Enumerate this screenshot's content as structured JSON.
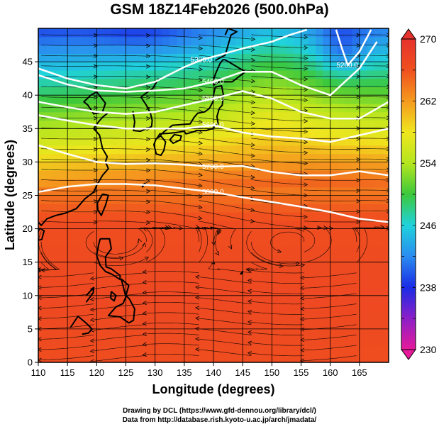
{
  "chart_data": {
    "type": "heatmap",
    "title": "GSM 18Z14Feb2026 (500.0hPa)",
    "xlabel": "Longitude (degrees)",
    "ylabel": "Latitude  (degrees)",
    "xlim": [
      110,
      170
    ],
    "ylim": [
      0,
      50
    ],
    "xticks": [
      110,
      115,
      120,
      125,
      130,
      135,
      140,
      145,
      150,
      155,
      160,
      165
    ],
    "yticks": [
      0,
      5,
      10,
      15,
      20,
      25,
      30,
      35,
      40,
      45
    ],
    "grid": true,
    "shaded_variable_range": [
      230,
      270
    ],
    "colorbar": {
      "labels": [
        270,
        262,
        254,
        246,
        238,
        230
      ],
      "range": [
        230,
        270
      ],
      "colors": [
        "#e61a9a",
        "#8c1fc8",
        "#1a2be6",
        "#2a8cf0",
        "#1fd2dc",
        "#3cc83c",
        "#b4e61e",
        "#f0e61e",
        "#f59a1e",
        "#f0501e",
        "#e6322d"
      ]
    },
    "contours": [
      {
        "label": "5300.0",
        "points": [
          [
            110,
            44
          ],
          [
            115,
            42.5
          ],
          [
            120,
            41.5
          ],
          [
            125,
            41
          ],
          [
            130,
            42
          ],
          [
            135,
            44.2
          ],
          [
            138,
            45.3
          ],
          [
            141,
            46
          ],
          [
            145,
            47
          ],
          [
            150,
            48
          ],
          [
            153,
            49
          ],
          [
            156,
            49.8
          ]
        ]
      },
      {
        "label": "5400.0",
        "points": [
          [
            110,
            43
          ],
          [
            115,
            41.6
          ],
          [
            120,
            40.7
          ],
          [
            125,
            40.5
          ],
          [
            130,
            40.7
          ],
          [
            135,
            41
          ],
          [
            140,
            42
          ],
          [
            145,
            43.5
          ],
          [
            150,
            43.5
          ],
          [
            155,
            41.5
          ],
          [
            160,
            40
          ],
          [
            165,
            44
          ],
          [
            168,
            48
          ]
        ]
      },
      {
        "label": "5500.0",
        "points": [
          [
            110,
            39
          ],
          [
            115,
            38.2
          ],
          [
            120,
            37.5
          ],
          [
            125,
            37.2
          ],
          [
            130,
            37.5
          ],
          [
            135,
            38.5
          ],
          [
            140,
            39.5
          ],
          [
            145,
            40.6
          ],
          [
            150,
            39.5
          ],
          [
            155,
            37.5
          ],
          [
            160,
            36.5
          ],
          [
            165,
            36.5
          ],
          [
            170,
            39
          ]
        ]
      },
      {
        "label": "5600.0",
        "points": [
          [
            110,
            37
          ],
          [
            115,
            36.2
          ],
          [
            120,
            35.5
          ],
          [
            125,
            35
          ],
          [
            130,
            35
          ],
          [
            135,
            35
          ],
          [
            140,
            35.5
          ],
          [
            145,
            34.4
          ],
          [
            150,
            33.8
          ],
          [
            155,
            33.5
          ],
          [
            160,
            33
          ],
          [
            165,
            34
          ],
          [
            170,
            35
          ]
        ]
      },
      {
        "label": "5700.0",
        "points": [
          [
            110,
            32.5
          ],
          [
            115,
            31.2
          ],
          [
            120,
            30
          ],
          [
            125,
            29.7
          ],
          [
            130,
            29.8
          ],
          [
            135,
            29.6
          ],
          [
            140,
            29.3
          ],
          [
            145,
            29.4
          ],
          [
            150,
            28.5
          ],
          [
            155,
            28
          ],
          [
            160,
            28
          ],
          [
            165,
            28.6
          ],
          [
            170,
            28
          ]
        ]
      },
      {
        "label": "5800.0",
        "points": [
          [
            110,
            25.5
          ],
          [
            115,
            26.3
          ],
          [
            120,
            26.7
          ],
          [
            125,
            26.7
          ],
          [
            130,
            26.5
          ],
          [
            135,
            26
          ],
          [
            140,
            25.5
          ],
          [
            145,
            24.7
          ],
          [
            150,
            24
          ],
          [
            155,
            23.3
          ],
          [
            160,
            22.5
          ],
          [
            165,
            21.5
          ],
          [
            170,
            21
          ]
        ]
      },
      {
        "label": "5200.0",
        "points": [
          [
            161,
            49.8
          ],
          [
            162,
            47
          ],
          [
            163,
            44.5
          ],
          [
            165,
            46.5
          ],
          [
            167,
            49.8
          ]
        ]
      }
    ]
  }
}
